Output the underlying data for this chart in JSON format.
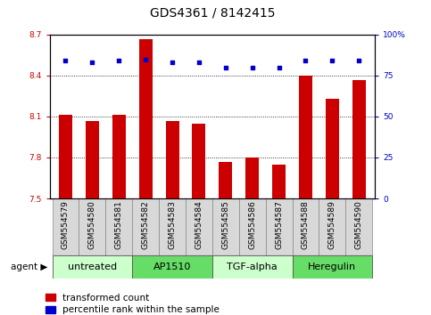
{
  "title": "GDS4361 / 8142415",
  "samples": [
    "GSM554579",
    "GSM554580",
    "GSM554581",
    "GSM554582",
    "GSM554583",
    "GSM554584",
    "GSM554585",
    "GSM554586",
    "GSM554587",
    "GSM554588",
    "GSM554589",
    "GSM554590"
  ],
  "bar_values": [
    8.11,
    8.07,
    8.11,
    8.67,
    8.07,
    8.05,
    7.77,
    7.8,
    7.75,
    8.4,
    8.23,
    8.37
  ],
  "percentile_values": [
    84,
    83,
    84,
    85,
    83,
    83,
    80,
    80,
    80,
    84,
    84,
    84
  ],
  "bar_color": "#cc0000",
  "percentile_color": "#0000cc",
  "ylim_left": [
    7.5,
    8.7
  ],
  "ylim_right": [
    0,
    100
  ],
  "yticks_left": [
    7.5,
    7.8,
    8.1,
    8.4,
    8.7
  ],
  "yticks_right": [
    0,
    25,
    50,
    75,
    100
  ],
  "ytick_labels_left": [
    "7.5",
    "7.8",
    "8.1",
    "8.4",
    "8.7"
  ],
  "ytick_labels_right": [
    "0",
    "25",
    "50",
    "75",
    "100%"
  ],
  "grid_lines": [
    7.8,
    8.1,
    8.4
  ],
  "agent_groups": [
    {
      "label": "untreated",
      "start": 0,
      "end": 3,
      "color": "#ccffcc"
    },
    {
      "label": "AP1510",
      "start": 3,
      "end": 6,
      "color": "#66dd66"
    },
    {
      "label": "TGF-alpha",
      "start": 6,
      "end": 9,
      "color": "#ccffcc"
    },
    {
      "label": "Heregulin",
      "start": 9,
      "end": 12,
      "color": "#66dd66"
    }
  ],
  "legend_bar_label": "transformed count",
  "legend_pct_label": "percentile rank within the sample",
  "agent_label": "agent",
  "background_color": "#ffffff",
  "tick_bg_color": "#d8d8d8",
  "bar_width": 0.5,
  "title_fontsize": 10,
  "tick_fontsize": 6.5,
  "label_fontsize": 7.5,
  "agent_fontsize": 8
}
